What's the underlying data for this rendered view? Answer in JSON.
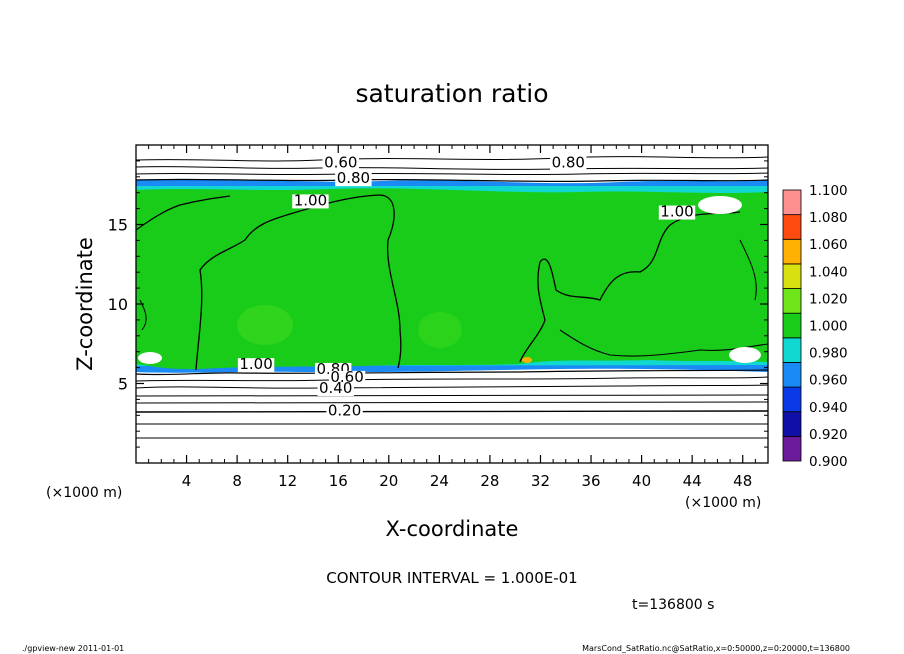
{
  "chart_data": {
    "type": "heatmap",
    "title": "saturation ratio",
    "xlabel": "X-coordinate",
    "ylabel": "Z-coordinate",
    "x_unit_label": "(×1000 m)",
    "y_unit_label": "(×1000 m)",
    "xlim": [
      0,
      50
    ],
    "ylim": [
      0,
      20
    ],
    "x_ticks": [
      4,
      8,
      12,
      16,
      20,
      24,
      28,
      32,
      36,
      40,
      44,
      48
    ],
    "y_ticks": [
      5,
      10,
      15
    ],
    "colorbar": {
      "levels": [
        "0.900",
        "0.920",
        "0.940",
        "0.960",
        "0.980",
        "1.000",
        "1.020",
        "1.040",
        "1.060",
        "1.080",
        "1.100"
      ],
      "colors": [
        "#6a1a9a",
        "#1010a8",
        "#0a3ae8",
        "#1a8af5",
        "#10d8d0",
        "#19cc19",
        "#6ee61a",
        "#d8e010",
        "#ffb000",
        "#ff4a10",
        "#ff9090"
      ]
    },
    "contour_labels": [
      {
        "text": "0.60",
        "x": 16.2,
        "z": 18.6
      },
      {
        "text": "0.80",
        "x": 34.2,
        "z": 18.6
      },
      {
        "text": "0.80",
        "x": 17.2,
        "z": 17.6
      },
      {
        "text": "1.00",
        "x": 13.8,
        "z": 16.2
      },
      {
        "text": "1.00",
        "x": 42.8,
        "z": 15.5
      },
      {
        "text": "1.00",
        "x": 9.5,
        "z": 5.9
      },
      {
        "text": "0.80",
        "x": 15.6,
        "z": 5.6
      },
      {
        "text": "0.60",
        "x": 16.7,
        "z": 5.1
      },
      {
        "text": "0.40",
        "x": 15.8,
        "z": 4.4
      },
      {
        "text": "0.20",
        "x": 16.5,
        "z": 3.0
      }
    ],
    "contour_interval_text": "CONTOUR INTERVAL = 1.000E-01",
    "time_text": "t=136800  s"
  },
  "footer": {
    "left": "./gpview-new   2011-01-01",
    "right": "MarsCond_SatRatio.nc@SatRatio,x=0:50000,z=0:20000,t=136800"
  }
}
